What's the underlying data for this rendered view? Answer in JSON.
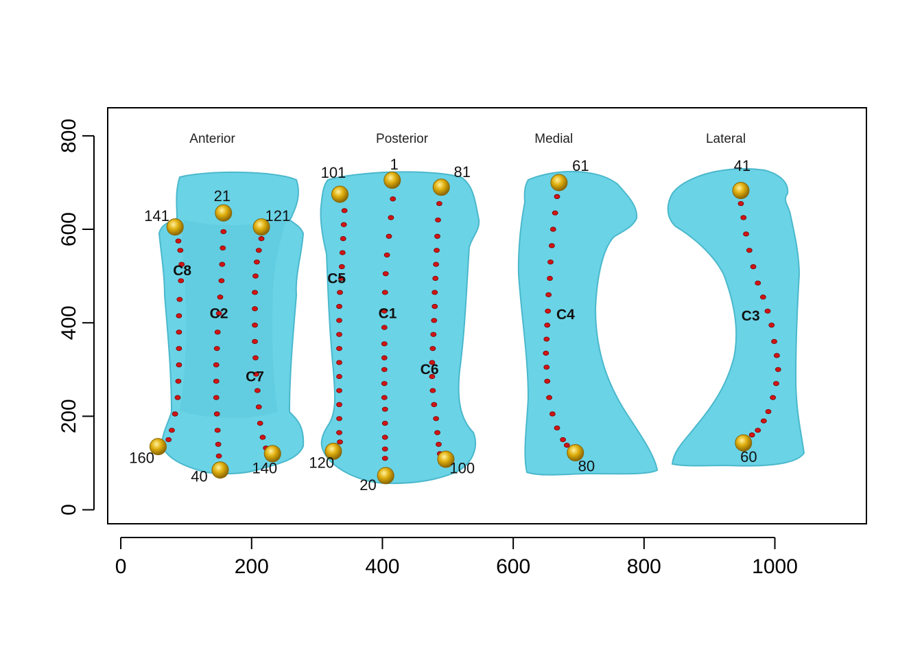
{
  "chart_data": {
    "type": "scatter",
    "xlim": [
      -20,
      1140
    ],
    "ylim": [
      -30,
      860
    ],
    "x_ticks": [
      0,
      200,
      400,
      600,
      800,
      1000
    ],
    "y_ticks": [
      0,
      200,
      400,
      600,
      800
    ],
    "view_labels": [
      {
        "text": "Anterior",
        "x": 140,
        "y": 785
      },
      {
        "text": "Posterior",
        "x": 430,
        "y": 785
      },
      {
        "text": "Medial",
        "x": 662,
        "y": 785
      },
      {
        "text": "Lateral",
        "x": 925,
        "y": 785
      }
    ],
    "bone_colors": {
      "fill": "#6ad3e6",
      "stroke": "#4bb8cc",
      "shade": "#58c2d6"
    },
    "landmark_color": "#e0b010",
    "semilandmark_color": "#d01515",
    "landmarks": [
      {
        "id": "141",
        "x": 83,
        "y": 605,
        "lx": 55,
        "ly": 618
      },
      {
        "id": "21",
        "x": 157,
        "y": 635,
        "lx": 155,
        "ly": 660
      },
      {
        "id": "121",
        "x": 215,
        "y": 605,
        "lx": 240,
        "ly": 618
      },
      {
        "id": "160",
        "x": 57,
        "y": 135,
        "lx": 32,
        "ly": 100
      },
      {
        "id": "40",
        "x": 152,
        "y": 85,
        "lx": 120,
        "ly": 60
      },
      {
        "id": "140",
        "x": 232,
        "y": 120,
        "lx": 220,
        "ly": 78
      },
      {
        "id": "101",
        "x": 335,
        "y": 675,
        "lx": 325,
        "ly": 710
      },
      {
        "id": "1",
        "x": 415,
        "y": 705,
        "lx": 418,
        "ly": 728
      },
      {
        "id": "81",
        "x": 490,
        "y": 690,
        "lx": 522,
        "ly": 712
      },
      {
        "id": "120",
        "x": 325,
        "y": 125,
        "lx": 307,
        "ly": 90
      },
      {
        "id": "20",
        "x": 405,
        "y": 73,
        "lx": 378,
        "ly": 42
      },
      {
        "id": "100",
        "x": 497,
        "y": 108,
        "lx": 522,
        "ly": 78
      },
      {
        "id": "61",
        "x": 670,
        "y": 700,
        "lx": 703,
        "ly": 725
      },
      {
        "id": "80",
        "x": 695,
        "y": 122,
        "lx": 712,
        "ly": 82
      },
      {
        "id": "41",
        "x": 948,
        "y": 683,
        "lx": 950,
        "ly": 725
      },
      {
        "id": "60",
        "x": 952,
        "y": 143,
        "lx": 960,
        "ly": 102
      }
    ],
    "curves": [
      {
        "id": "C8",
        "lx": 94,
        "ly": 502,
        "points": [
          [
            88,
            575
          ],
          [
            91,
            555
          ],
          [
            93,
            525
          ],
          [
            92,
            490
          ],
          [
            90,
            450
          ],
          [
            89,
            415
          ],
          [
            89,
            380
          ],
          [
            89,
            345
          ],
          [
            89,
            310
          ],
          [
            88,
            275
          ],
          [
            87,
            240
          ],
          [
            83,
            205
          ],
          [
            78,
            170
          ],
          [
            73,
            150
          ]
        ]
      },
      {
        "id": "C2",
        "lx": 150,
        "ly": 410,
        "points": [
          [
            157,
            595
          ],
          [
            156,
            560
          ],
          [
            155,
            525
          ],
          [
            154,
            490
          ],
          [
            152,
            455
          ],
          [
            150,
            420
          ],
          [
            148,
            380
          ],
          [
            147,
            345
          ],
          [
            146,
            310
          ],
          [
            146,
            275
          ],
          [
            146,
            240
          ],
          [
            147,
            205
          ],
          [
            148,
            170
          ],
          [
            149,
            140
          ],
          [
            150,
            115
          ]
        ]
      },
      {
        "id": "C7",
        "lx": 205,
        "ly": 275,
        "points": [
          [
            215,
            580
          ],
          [
            211,
            555
          ],
          [
            208,
            530
          ],
          [
            206,
            500
          ],
          [
            205,
            465
          ],
          [
            205,
            430
          ],
          [
            205,
            395
          ],
          [
            205,
            360
          ],
          [
            206,
            325
          ],
          [
            207,
            290
          ],
          [
            209,
            255
          ],
          [
            211,
            220
          ],
          [
            213,
            185
          ],
          [
            217,
            155
          ],
          [
            222,
            132
          ]
        ]
      },
      {
        "id": "C5",
        "lx": 330,
        "ly": 485,
        "points": [
          [
            342,
            640
          ],
          [
            341,
            610
          ],
          [
            340,
            580
          ],
          [
            339,
            550
          ],
          [
            338,
            520
          ],
          [
            337,
            495
          ],
          [
            335,
            465
          ],
          [
            334,
            435
          ],
          [
            334,
            405
          ],
          [
            334,
            375
          ],
          [
            334,
            345
          ],
          [
            334,
            315
          ],
          [
            334,
            285
          ],
          [
            334,
            255
          ],
          [
            334,
            225
          ],
          [
            334,
            195
          ],
          [
            334,
            165
          ],
          [
            335,
            145
          ]
        ]
      },
      {
        "id": "C1",
        "lx": 408,
        "ly": 410,
        "points": [
          [
            416,
            665
          ],
          [
            413,
            625
          ],
          [
            410,
            585
          ],
          [
            407,
            545
          ],
          [
            405,
            505
          ],
          [
            404,
            465
          ],
          [
            403,
            425
          ],
          [
            403,
            390
          ],
          [
            403,
            355
          ],
          [
            403,
            325
          ],
          [
            403,
            300
          ],
          [
            403,
            270
          ],
          [
            403,
            240
          ],
          [
            404,
            215
          ],
          [
            404,
            185
          ],
          [
            404,
            155
          ],
          [
            404,
            130
          ],
          [
            404,
            110
          ]
        ]
      },
      {
        "id": "C6",
        "lx": 472,
        "ly": 290,
        "points": [
          [
            487,
            655
          ],
          [
            485,
            620
          ],
          [
            484,
            585
          ],
          [
            483,
            555
          ],
          [
            482,
            525
          ],
          [
            481,
            495
          ],
          [
            480,
            465
          ],
          [
            480,
            435
          ],
          [
            479,
            405
          ],
          [
            478,
            375
          ],
          [
            477,
            345
          ],
          [
            476,
            315
          ],
          [
            476,
            285
          ],
          [
            477,
            255
          ],
          [
            479,
            225
          ],
          [
            482,
            195
          ],
          [
            484,
            165
          ],
          [
            486,
            140
          ],
          [
            488,
            120
          ]
        ]
      },
      {
        "id": "C4",
        "lx": 680,
        "ly": 408,
        "points": [
          [
            667,
            670
          ],
          [
            664,
            635
          ],
          [
            661,
            600
          ],
          [
            659,
            565
          ],
          [
            657,
            530
          ],
          [
            656,
            495
          ],
          [
            654,
            460
          ],
          [
            653,
            425
          ],
          [
            652,
            395
          ],
          [
            651,
            365
          ],
          [
            650,
            335
          ],
          [
            651,
            305
          ],
          [
            652,
            275
          ],
          [
            655,
            240
          ],
          [
            660,
            205
          ],
          [
            667,
            175
          ],
          [
            676,
            150
          ],
          [
            682,
            138
          ]
        ]
      },
      {
        "id": "C3",
        "lx": 963,
        "ly": 405,
        "points": [
          [
            948,
            655
          ],
          [
            952,
            625
          ],
          [
            956,
            590
          ],
          [
            961,
            555
          ],
          [
            967,
            520
          ],
          [
            974,
            485
          ],
          [
            982,
            455
          ],
          [
            989,
            425
          ],
          [
            995,
            395
          ],
          [
            999,
            360
          ],
          [
            1003,
            330
          ],
          [
            1005,
            300
          ],
          [
            1002,
            270
          ],
          [
            997,
            240
          ],
          [
            990,
            210
          ],
          [
            983,
            190
          ],
          [
            974,
            170
          ],
          [
            965,
            160
          ]
        ]
      }
    ]
  }
}
